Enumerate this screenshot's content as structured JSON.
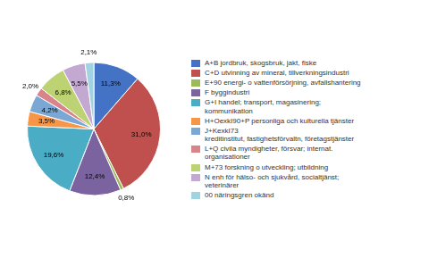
{
  "chart_data": {
    "type": "pie",
    "categories": [
      "A+B jordbruk, skogsbruk, jakt, fiske",
      "C+D utvinning av mineral, tillverkningsindustri",
      "E+90 energi- o vattenförsörjning, avfallshantering",
      "F byggindustri",
      "G+I handel; transport, magasinering;\nkommunikation",
      "H+OexkI90+P personliga och kulturella tjänster",
      "J+KexkI73\nkreditinstitut, fastighetsförvaltn, företagstjänster",
      "L+Q civila myndigheter, försvar; internat.\norganisationer",
      "M+73 forskning o utveckling; utbildning",
      "N enh för hälso- och sjukvård, socialtjänst;\nveterinärer",
      "00 näringsgren okänd"
    ],
    "values": [
      11.3,
      31.0,
      0.8,
      12.4,
      19.6,
      3.5,
      4.2,
      2.0,
      6.8,
      5.5,
      2.1
    ],
    "value_labels": [
      "11,3%",
      "31,0%",
      "0,8%",
      "12,4%",
      "19,6%",
      "3,5%",
      "4,2%",
      "2,0%",
      "6,8%",
      "5,5%",
      "2,1%"
    ],
    "colors": [
      "#4472C4",
      "#C0504D",
      "#9BBB59",
      "#7B63A0",
      "#4BACC6",
      "#F79646",
      "#7BA7D4",
      "#D9838A",
      "#BDD373",
      "#C3A8D1",
      "#A0D4E3"
    ],
    "data_labels": true,
    "legend": "right"
  }
}
